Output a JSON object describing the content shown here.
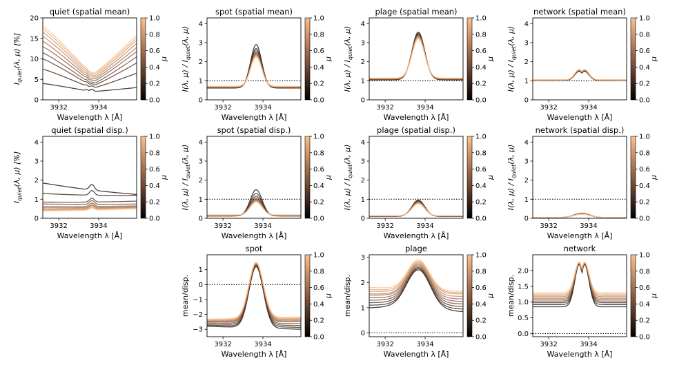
{
  "figure": {
    "colorbar": {
      "label": "μ",
      "ticks": [
        "0.0",
        "0.2",
        "0.4",
        "0.6",
        "0.8",
        "1.0"
      ]
    },
    "mu_values": [
      0.1,
      0.2,
      0.3,
      0.4,
      0.5,
      0.6,
      0.7,
      0.8,
      0.9,
      1.0
    ],
    "line_color_scale": {
      "low": "#000000",
      "mid": "#8a5a40",
      "high": "#ffc08a"
    }
  },
  "chart_data": [
    {
      "id": "quiet-mean",
      "type": "line",
      "title": "quiet (spatial mean)",
      "xlabel": "Wavelength λ [Å]",
      "ylabel": "I_quiet(λ, μ) [%]",
      "ylabel_main": "I",
      "ylabel_sub": "quiet",
      "ylabel_rest": "(λ, μ) [%]",
      "xlim": [
        3931.2,
        3935.9
      ],
      "ylim": [
        0,
        20
      ],
      "xticks": [
        3932,
        3934
      ],
      "xtick_labels": [
        "3932",
        "3934"
      ],
      "yticks": [
        0,
        5,
        10,
        15,
        20
      ],
      "ytick_labels": [
        "0",
        "5",
        "10",
        "15",
        "20"
      ],
      "reference_line": null,
      "profile": "quiet",
      "series": [
        {
          "mu": 0.1,
          "left": 4.0,
          "center": 2.0,
          "right": 3.0
        },
        {
          "mu": 0.2,
          "left": 7.5,
          "center": 2.8,
          "right": 6.5
        },
        {
          "mu": 0.3,
          "left": 10.0,
          "center": 3.3,
          "right": 9.0
        },
        {
          "mu": 0.4,
          "left": 11.5,
          "center": 3.7,
          "right": 10.5
        },
        {
          "mu": 0.5,
          "left": 13.0,
          "center": 4.2,
          "right": 11.8
        },
        {
          "mu": 0.6,
          "left": 14.3,
          "center": 4.6,
          "right": 12.8
        },
        {
          "mu": 0.7,
          "left": 15.5,
          "center": 5.0,
          "right": 13.8
        },
        {
          "mu": 0.8,
          "left": 16.5,
          "center": 5.4,
          "right": 14.6
        },
        {
          "mu": 0.9,
          "left": 17.3,
          "center": 5.8,
          "right": 15.2
        },
        {
          "mu": 1.0,
          "left": 18.0,
          "center": 6.1,
          "right": 15.8
        }
      ]
    },
    {
      "id": "spot-mean",
      "type": "line",
      "title": "spot (spatial mean)",
      "xlabel": "Wavelength λ [Å]",
      "ylabel": "I(λ, μ) / I_quiet(λ, μ)",
      "ylabel_main": "I(λ, μ) / I",
      "ylabel_sub": "quiet",
      "ylabel_rest": "(λ, μ)",
      "xlim": [
        3931.2,
        3935.9
      ],
      "ylim": [
        0,
        4.3
      ],
      "xticks": [
        3932,
        3934
      ],
      "xtick_labels": [
        "3932",
        "3934"
      ],
      "yticks": [
        0,
        1,
        2,
        3,
        4
      ],
      "ytick_labels": [
        "0",
        "1",
        "2",
        "3",
        "4"
      ],
      "reference_line": 1,
      "profile": "peak",
      "peak_center": 3933.66,
      "peak_width": 0.28,
      "series": [
        {
          "mu": 0.1,
          "base": 0.62,
          "peak": 2.9
        },
        {
          "mu": 0.2,
          "base": 0.63,
          "peak": 2.7
        },
        {
          "mu": 0.3,
          "base": 0.64,
          "peak": 2.6
        },
        {
          "mu": 0.4,
          "base": 0.65,
          "peak": 2.5
        },
        {
          "mu": 0.5,
          "base": 0.66,
          "peak": 2.45
        },
        {
          "mu": 0.6,
          "base": 0.67,
          "peak": 2.4
        },
        {
          "mu": 0.7,
          "base": 0.68,
          "peak": 2.35
        },
        {
          "mu": 0.8,
          "base": 0.69,
          "peak": 2.3
        },
        {
          "mu": 0.9,
          "base": 0.7,
          "peak": 2.3
        },
        {
          "mu": 1.0,
          "base": 0.71,
          "peak": 2.25
        }
      ]
    },
    {
      "id": "plage-mean",
      "type": "line",
      "title": "plage (spatial mean)",
      "xlabel": "Wavelength λ [Å]",
      "ylabel": "I(λ, μ) / I_quiet(λ, μ)",
      "ylabel_main": "I(λ, μ) / I",
      "ylabel_sub": "quiet",
      "ylabel_rest": "(λ, μ)",
      "xlim": [
        3931.2,
        3935.9
      ],
      "ylim": [
        0,
        4.3
      ],
      "xticks": [
        3932,
        3934
      ],
      "xtick_labels": [
        "3932",
        "3934"
      ],
      "yticks": [
        0,
        1,
        2,
        3,
        4
      ],
      "ytick_labels": [
        "0",
        "1",
        "2",
        "3",
        "4"
      ],
      "reference_line": 1,
      "profile": "peak",
      "peak_center": 3933.66,
      "peak_width": 0.32,
      "series": [
        {
          "mu": 0.1,
          "base": 1.05,
          "peak": 3.55
        },
        {
          "mu": 0.2,
          "base": 1.06,
          "peak": 3.5
        },
        {
          "mu": 0.3,
          "base": 1.07,
          "peak": 3.45
        },
        {
          "mu": 0.4,
          "base": 1.08,
          "peak": 3.4
        },
        {
          "mu": 0.5,
          "base": 1.09,
          "peak": 3.38
        },
        {
          "mu": 0.6,
          "base": 1.1,
          "peak": 3.35
        },
        {
          "mu": 0.7,
          "base": 1.11,
          "peak": 3.3
        },
        {
          "mu": 0.8,
          "base": 1.12,
          "peak": 3.3
        },
        {
          "mu": 0.9,
          "base": 1.13,
          "peak": 3.25
        },
        {
          "mu": 1.0,
          "base": 1.14,
          "peak": 3.2
        }
      ]
    },
    {
      "id": "network-mean",
      "type": "line",
      "title": "network (spatial mean)",
      "xlabel": "Wavelength λ [Å]",
      "ylabel": "I(λ, μ) / I_quiet(λ, μ)",
      "ylabel_main": "I(λ, μ) / I",
      "ylabel_sub": "quiet",
      "ylabel_rest": "(λ, μ)",
      "xlim": [
        3931.2,
        3935.9
      ],
      "ylim": [
        0,
        4.3
      ],
      "xticks": [
        3932,
        3934
      ],
      "xtick_labels": [
        "3932",
        "3934"
      ],
      "yticks": [
        0,
        1,
        2,
        3,
        4
      ],
      "ytick_labels": [
        "0",
        "1",
        "2",
        "3",
        "4"
      ],
      "reference_line": 1,
      "profile": "peak",
      "peak_center": 3933.66,
      "peak_width": 0.38,
      "double_peak": true,
      "series": [
        {
          "mu": 0.1,
          "base": 1.02,
          "peak": 1.5
        },
        {
          "mu": 0.2,
          "base": 1.02,
          "peak": 1.52
        },
        {
          "mu": 0.3,
          "base": 1.03,
          "peak": 1.53
        },
        {
          "mu": 0.4,
          "base": 1.03,
          "peak": 1.54
        },
        {
          "mu": 0.5,
          "base": 1.03,
          "peak": 1.55
        },
        {
          "mu": 0.6,
          "base": 1.04,
          "peak": 1.56
        },
        {
          "mu": 0.7,
          "base": 1.04,
          "peak": 1.57
        },
        {
          "mu": 0.8,
          "base": 1.04,
          "peak": 1.58
        },
        {
          "mu": 0.9,
          "base": 1.05,
          "peak": 1.58
        },
        {
          "mu": 1.0,
          "base": 1.05,
          "peak": 1.6
        }
      ]
    },
    {
      "id": "quiet-disp",
      "type": "line",
      "title": "quiet (spatial disp.)",
      "xlabel": "Wavelength λ [Å]",
      "ylabel": "I_quiet(λ, μ) [%]",
      "ylabel_main": "I",
      "ylabel_sub": "quiet",
      "ylabel_rest": "(λ, μ) [%]",
      "xlim": [
        3931.2,
        3935.9
      ],
      "ylim": [
        0,
        4.3
      ],
      "xticks": [
        3932,
        3934
      ],
      "xtick_labels": [
        "3932",
        "3934"
      ],
      "yticks": [
        0,
        1,
        2,
        3,
        4
      ],
      "ytick_labels": [
        "0",
        "1",
        "2",
        "3",
        "4"
      ],
      "reference_line": null,
      "profile": "flatbump",
      "peak_center": 3933.66,
      "peak_width": 0.12,
      "series": [
        {
          "mu": 0.1,
          "left": 1.85,
          "right": 1.25,
          "bump": 0.3
        },
        {
          "mu": 0.2,
          "left": 1.3,
          "right": 1.2,
          "bump": 0.25
        },
        {
          "mu": 0.3,
          "left": 0.85,
          "right": 0.9,
          "bump": 0.2
        },
        {
          "mu": 0.4,
          "left": 0.75,
          "right": 0.75,
          "bump": 0.2
        },
        {
          "mu": 0.5,
          "left": 0.62,
          "right": 0.65,
          "bump": 0.18
        },
        {
          "mu": 0.6,
          "left": 0.55,
          "right": 0.6,
          "bump": 0.15
        },
        {
          "mu": 0.7,
          "left": 0.48,
          "right": 0.58,
          "bump": 0.15
        },
        {
          "mu": 0.8,
          "left": 0.44,
          "right": 0.55,
          "bump": 0.12
        },
        {
          "mu": 0.9,
          "left": 0.4,
          "right": 0.52,
          "bump": 0.12
        },
        {
          "mu": 1.0,
          "left": 0.38,
          "right": 0.5,
          "bump": 0.1
        }
      ]
    },
    {
      "id": "spot-disp",
      "type": "line",
      "title": "spot (spatial disp.)",
      "xlabel": "Wavelength λ [Å]",
      "ylabel": "I(λ, μ) / I_quiet(λ, μ)",
      "ylabel_main": "I(λ, μ) / I",
      "ylabel_sub": "quiet",
      "ylabel_rest": "(λ, μ)",
      "xlim": [
        3931.2,
        3935.9
      ],
      "ylim": [
        0,
        4.3
      ],
      "xticks": [
        3932,
        3934
      ],
      "xtick_labels": [
        "3932",
        "3934"
      ],
      "yticks": [
        0,
        1,
        2,
        3,
        4
      ],
      "ytick_labels": [
        "0",
        "1",
        "2",
        "3",
        "4"
      ],
      "reference_line": 1,
      "profile": "peak",
      "peak_center": 3933.66,
      "peak_width": 0.3,
      "series": [
        {
          "mu": 0.1,
          "base": 0.12,
          "peak": 1.5
        },
        {
          "mu": 0.2,
          "base": 0.13,
          "peak": 1.3
        },
        {
          "mu": 0.3,
          "base": 0.14,
          "peak": 1.15
        },
        {
          "mu": 0.4,
          "base": 0.14,
          "peak": 1.05
        },
        {
          "mu": 0.5,
          "base": 0.15,
          "peak": 1.0
        },
        {
          "mu": 0.6,
          "base": 0.15,
          "peak": 0.95
        },
        {
          "mu": 0.7,
          "base": 0.16,
          "peak": 0.92
        },
        {
          "mu": 0.8,
          "base": 0.16,
          "peak": 0.9
        },
        {
          "mu": 0.9,
          "base": 0.17,
          "peak": 0.88
        },
        {
          "mu": 1.0,
          "base": 0.17,
          "peak": 0.85
        }
      ]
    },
    {
      "id": "plage-disp",
      "type": "line",
      "title": "plage (spatial disp.)",
      "xlabel": "Wavelength λ [Å]",
      "ylabel": "I(λ, μ) / I_quiet(λ, μ)",
      "ylabel_main": "I(λ, μ) / I",
      "ylabel_sub": "quiet",
      "ylabel_rest": "(λ, μ)",
      "xlim": [
        3931.2,
        3935.9
      ],
      "ylim": [
        0,
        4.3
      ],
      "xticks": [
        3932,
        3934
      ],
      "xtick_labels": [
        "3932",
        "3934"
      ],
      "yticks": [
        0,
        1,
        2,
        3,
        4
      ],
      "ytick_labels": [
        "0",
        "1",
        "2",
        "3",
        "4"
      ],
      "reference_line": 1,
      "profile": "peak",
      "peak_center": 3933.66,
      "peak_width": 0.32,
      "series": [
        {
          "mu": 0.1,
          "base": 0.1,
          "peak": 0.95
        },
        {
          "mu": 0.2,
          "base": 0.1,
          "peak": 0.93
        },
        {
          "mu": 0.3,
          "base": 0.11,
          "peak": 0.9
        },
        {
          "mu": 0.4,
          "base": 0.11,
          "peak": 0.88
        },
        {
          "mu": 0.5,
          "base": 0.11,
          "peak": 0.86
        },
        {
          "mu": 0.6,
          "base": 0.12,
          "peak": 0.84
        },
        {
          "mu": 0.7,
          "base": 0.12,
          "peak": 0.82
        },
        {
          "mu": 0.8,
          "base": 0.12,
          "peak": 0.8
        },
        {
          "mu": 0.9,
          "base": 0.13,
          "peak": 0.78
        },
        {
          "mu": 1.0,
          "base": 0.13,
          "peak": 0.76
        }
      ]
    },
    {
      "id": "network-disp",
      "type": "line",
      "title": "network (spatial disp.)",
      "xlabel": "Wavelength λ [Å]",
      "ylabel": "I(λ, μ) / I_quiet(λ, μ)",
      "ylabel_main": "I(λ, μ) / I",
      "ylabel_sub": "quiet",
      "ylabel_rest": "(λ, μ)",
      "xlim": [
        3931.2,
        3935.9
      ],
      "ylim": [
        0,
        4.3
      ],
      "xticks": [
        3932,
        3934
      ],
      "xtick_labels": [
        "3932",
        "3934"
      ],
      "yticks": [
        0,
        1,
        2,
        3,
        4
      ],
      "ytick_labels": [
        "0",
        "1",
        "2",
        "3",
        "4"
      ],
      "reference_line": 1,
      "profile": "peak",
      "peak_center": 3933.66,
      "peak_width": 0.4,
      "series": [
        {
          "mu": 0.1,
          "base": 0.03,
          "peak": 0.26
        },
        {
          "mu": 0.2,
          "base": 0.03,
          "peak": 0.26
        },
        {
          "mu": 0.3,
          "base": 0.03,
          "peak": 0.25
        },
        {
          "mu": 0.4,
          "base": 0.03,
          "peak": 0.25
        },
        {
          "mu": 0.5,
          "base": 0.03,
          "peak": 0.24
        },
        {
          "mu": 0.6,
          "base": 0.04,
          "peak": 0.24
        },
        {
          "mu": 0.7,
          "base": 0.04,
          "peak": 0.23
        },
        {
          "mu": 0.8,
          "base": 0.04,
          "peak": 0.23
        },
        {
          "mu": 0.9,
          "base": 0.04,
          "peak": 0.22
        },
        {
          "mu": 1.0,
          "base": 0.04,
          "peak": 0.22
        }
      ]
    },
    {
      "id": "spot-ratio",
      "type": "line",
      "title": "spot",
      "xlabel": "Wavelength λ [Å]",
      "ylabel": "mean/disp.",
      "ylabel_main": "mean/disp.",
      "ylabel_sub": "",
      "ylabel_rest": "",
      "xlim": [
        3931.2,
        3935.9
      ],
      "ylim": [
        -3.5,
        2.0
      ],
      "xticks": [
        3932,
        3934
      ],
      "xtick_labels": [
        "3932",
        "3934"
      ],
      "yticks": [
        -3,
        -2,
        -1,
        0,
        1
      ],
      "ytick_labels": [
        "−3",
        "−2",
        "−1",
        "0",
        "1"
      ],
      "reference_line": 0,
      "profile": "peak",
      "peak_center": 3933.66,
      "peak_width": 0.36,
      "series": [
        {
          "mu": 0.1,
          "base": -2.9,
          "peak": 1.2,
          "tilt": -0.2
        },
        {
          "mu": 0.2,
          "base": -2.8,
          "peak": 1.25,
          "tilt": -0.15
        },
        {
          "mu": 0.3,
          "base": -2.7,
          "peak": 1.3,
          "tilt": -0.1
        },
        {
          "mu": 0.4,
          "base": -2.6,
          "peak": 1.35,
          "tilt": -0.05
        },
        {
          "mu": 0.5,
          "base": -2.5,
          "peak": 1.35,
          "tilt": 0.0
        },
        {
          "mu": 0.6,
          "base": -2.45,
          "peak": 1.4,
          "tilt": 0.05
        },
        {
          "mu": 0.7,
          "base": -2.4,
          "peak": 1.4,
          "tilt": 0.1
        },
        {
          "mu": 0.8,
          "base": -2.35,
          "peak": 1.45,
          "tilt": 0.1
        },
        {
          "mu": 0.9,
          "base": -2.3,
          "peak": 1.45,
          "tilt": 0.12
        },
        {
          "mu": 1.0,
          "base": -2.25,
          "peak": 1.5,
          "tilt": 0.15
        }
      ]
    },
    {
      "id": "plage-ratio",
      "type": "line",
      "title": "plage",
      "xlabel": "Wavelength λ [Å]",
      "ylabel": "mean/disp.",
      "ylabel_main": "mean/disp.",
      "ylabel_sub": "",
      "ylabel_rest": "",
      "xlim": [
        3931.2,
        3935.9
      ],
      "ylim": [
        -0.15,
        3.1
      ],
      "xticks": [
        3932,
        3934
      ],
      "xtick_labels": [
        "3932",
        "3934"
      ],
      "yticks": [
        0,
        1,
        2,
        3
      ],
      "ytick_labels": [
        "0",
        "1",
        "2",
        "3"
      ],
      "reference_line": 0,
      "profile": "peakslope",
      "peak_center": 3933.66,
      "peak_width": 0.55,
      "series": [
        {
          "mu": 0.1,
          "left": 1.0,
          "right": 0.85,
          "peak": 2.55
        },
        {
          "mu": 0.2,
          "left": 1.1,
          "right": 0.95,
          "peak": 2.5
        },
        {
          "mu": 0.3,
          "left": 1.2,
          "right": 1.05,
          "peak": 2.55
        },
        {
          "mu": 0.4,
          "left": 1.3,
          "right": 1.15,
          "peak": 2.6
        },
        {
          "mu": 0.5,
          "left": 1.4,
          "right": 1.25,
          "peak": 2.65
        },
        {
          "mu": 0.6,
          "left": 1.5,
          "right": 1.35,
          "peak": 2.7
        },
        {
          "mu": 0.7,
          "left": 1.55,
          "right": 1.45,
          "peak": 2.75
        },
        {
          "mu": 0.8,
          "left": 1.65,
          "right": 1.55,
          "peak": 2.8
        },
        {
          "mu": 0.9,
          "left": 1.72,
          "right": 1.6,
          "peak": 2.85
        },
        {
          "mu": 1.0,
          "left": 1.8,
          "right": 1.65,
          "peak": 2.9
        }
      ]
    },
    {
      "id": "network-ratio",
      "type": "line",
      "title": "network",
      "xlabel": "Wavelength λ [Å]",
      "ylabel": "mean/disp.",
      "ylabel_main": "mean/disp.",
      "ylabel_sub": "",
      "ylabel_rest": "",
      "xlim": [
        3931.2,
        3935.9
      ],
      "ylim": [
        -0.1,
        2.5
      ],
      "xticks": [
        3932,
        3934
      ],
      "xtick_labels": [
        "3932",
        "3934"
      ],
      "yticks": [
        0.0,
        0.5,
        1.0,
        1.5,
        2.0
      ],
      "ytick_labels": [
        "0.0",
        "0.5",
        "1.0",
        "1.5",
        "2.0"
      ],
      "reference_line": 0,
      "profile": "peak",
      "peak_center": 3933.66,
      "peak_width": 0.38,
      "double_peak": true,
      "series": [
        {
          "mu": 0.1,
          "base": 0.85,
          "peak": 2.2
        },
        {
          "mu": 0.2,
          "base": 0.92,
          "peak": 2.2
        },
        {
          "mu": 0.3,
          "base": 0.98,
          "peak": 2.22
        },
        {
          "mu": 0.4,
          "base": 1.03,
          "peak": 2.22
        },
        {
          "mu": 0.5,
          "base": 1.08,
          "peak": 2.24
        },
        {
          "mu": 0.6,
          "base": 1.12,
          "peak": 2.24
        },
        {
          "mu": 0.7,
          "base": 1.17,
          "peak": 2.25
        },
        {
          "mu": 0.8,
          "base": 1.21,
          "peak": 2.25
        },
        {
          "mu": 0.9,
          "base": 1.25,
          "peak": 2.26
        },
        {
          "mu": 1.0,
          "base": 1.3,
          "peak": 2.27
        }
      ]
    }
  ]
}
